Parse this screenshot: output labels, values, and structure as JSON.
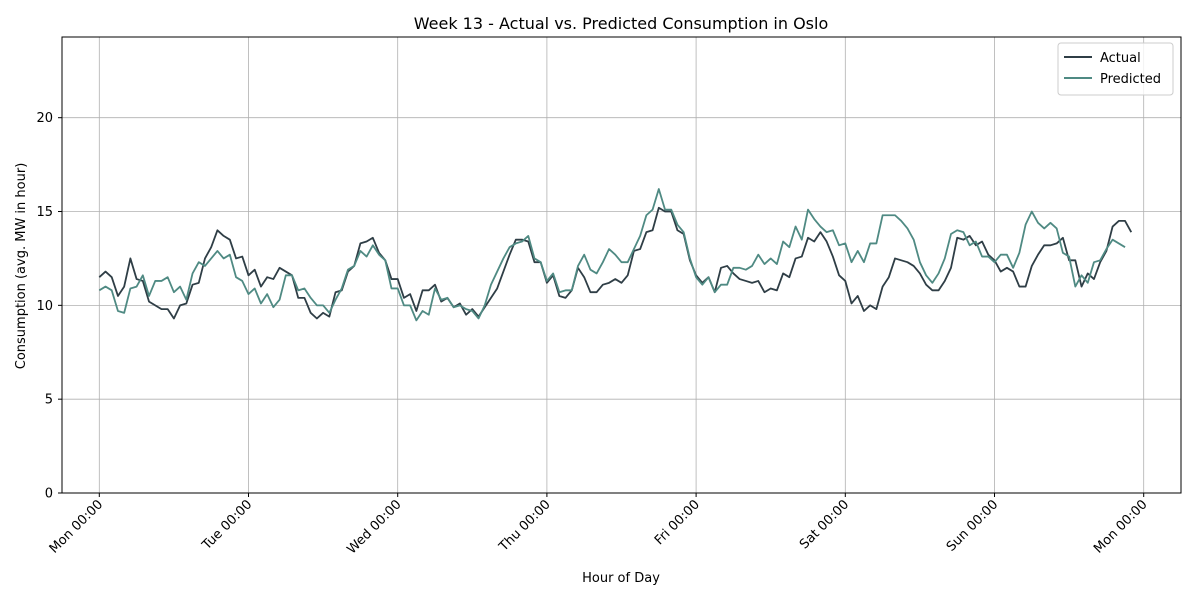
{
  "chart_data": {
    "type": "line",
    "title": "Week 13 - Actual vs. Predicted Consumption in Oslo",
    "xlabel": "Hour of Day",
    "ylabel": "Consumption (avg. MW in hour)",
    "xlim": [
      -6,
      174
    ],
    "ylim": [
      0,
      24.3
    ],
    "x_ticks": [
      {
        "x": 0,
        "label": "Mon 00:00"
      },
      {
        "x": 24,
        "label": "Tue 00:00"
      },
      {
        "x": 48,
        "label": "Wed 00:00"
      },
      {
        "x": 72,
        "label": "Thu 00:00"
      },
      {
        "x": 96,
        "label": "Fri 00:00"
      },
      {
        "x": 120,
        "label": "Sat 00:00"
      },
      {
        "x": 144,
        "label": "Sun 00:00"
      },
      {
        "x": 168,
        "label": "Mon 00:00"
      }
    ],
    "y_ticks": [
      0,
      5,
      10,
      15,
      20
    ],
    "grid": true,
    "legend_position": "top-right",
    "x_step_hours": 1,
    "series": [
      {
        "name": "Actual",
        "color": "#2f3e46",
        "values": [
          11.5,
          11.8,
          11.5,
          10.5,
          11.0,
          12.5,
          11.4,
          11.3,
          10.2,
          10.0,
          9.8,
          9.8,
          9.3,
          10.0,
          10.1,
          11.1,
          11.2,
          12.5,
          13.1,
          14.0,
          13.7,
          13.5,
          12.5,
          12.6,
          11.6,
          11.9,
          11.0,
          11.5,
          11.4,
          12.0,
          11.8,
          11.6,
          10.4,
          10.4,
          9.6,
          9.3,
          9.6,
          9.4,
          10.7,
          10.8,
          11.8,
          12.1,
          13.3,
          13.4,
          13.6,
          12.8,
          12.4,
          11.4,
          11.4,
          10.4,
          10.6,
          9.7,
          10.8,
          10.8,
          11.1,
          10.2,
          10.4,
          9.9,
          10.1,
          9.5,
          9.8,
          9.4,
          9.9,
          10.4,
          10.9,
          11.8,
          12.7,
          13.5,
          13.5,
          13.4,
          12.3,
          12.3,
          11.2,
          11.6,
          10.5,
          10.4,
          10.8,
          12.0,
          11.5,
          10.7,
          10.7,
          11.1,
          11.2,
          11.4,
          11.2,
          11.6,
          12.9,
          13.0,
          13.9,
          14.0,
          15.2,
          15.0,
          15.0,
          14.0,
          13.8,
          12.4,
          11.6,
          11.2,
          11.5,
          10.7,
          12.0,
          12.1,
          11.7,
          11.4,
          11.3,
          11.2,
          11.3,
          10.7,
          10.9,
          10.8,
          11.7,
          11.5,
          12.5,
          12.6,
          13.6,
          13.4,
          13.9,
          13.4,
          12.6,
          11.6,
          11.3,
          10.1,
          10.5,
          9.7,
          10.0,
          9.8,
          11.0,
          11.5,
          12.5,
          12.4,
          12.3,
          12.1,
          11.7,
          11.1,
          10.8,
          10.8,
          11.3,
          12.0,
          13.6,
          13.5,
          13.7,
          13.2,
          13.4,
          12.7,
          12.4,
          11.8,
          12.0,
          11.8,
          11.0,
          11.0,
          12.1,
          12.7,
          13.2,
          13.2,
          13.3,
          13.6,
          12.4,
          12.4,
          11.0,
          11.7,
          11.4,
          12.3,
          12.9,
          14.2,
          14.5,
          14.5,
          13.9
        ]
      },
      {
        "name": "Predicted",
        "color": "#4f8a83",
        "values": [
          10.8,
          11.0,
          10.8,
          9.7,
          9.6,
          10.9,
          11.0,
          11.6,
          10.5,
          11.3,
          11.3,
          11.5,
          10.7,
          11.0,
          10.3,
          11.7,
          12.3,
          12.1,
          12.5,
          12.9,
          12.5,
          12.7,
          11.5,
          11.3,
          10.6,
          10.9,
          10.1,
          10.6,
          9.9,
          10.3,
          11.6,
          11.6,
          10.8,
          10.9,
          10.4,
          10.0,
          10.0,
          9.6,
          10.3,
          10.9,
          11.9,
          12.1,
          12.9,
          12.6,
          13.2,
          12.7,
          12.4,
          10.9,
          10.9,
          10.0,
          10.0,
          9.2,
          9.7,
          9.5,
          10.9,
          10.3,
          10.4,
          9.9,
          10.0,
          9.8,
          9.7,
          9.3,
          10.0,
          11.1,
          11.8,
          12.5,
          13.1,
          13.3,
          13.4,
          13.7,
          12.5,
          12.3,
          11.3,
          11.7,
          10.7,
          10.8,
          10.8,
          12.1,
          12.7,
          11.9,
          11.7,
          12.3,
          13.0,
          12.7,
          12.3,
          12.3,
          13.0,
          13.7,
          14.8,
          15.1,
          16.2,
          15.1,
          15.1,
          14.3,
          13.9,
          12.5,
          11.5,
          11.1,
          11.5,
          10.7,
          11.1,
          11.1,
          12.0,
          12.0,
          11.9,
          12.1,
          12.7,
          12.2,
          12.5,
          12.2,
          13.4,
          13.1,
          14.2,
          13.5,
          15.1,
          14.6,
          14.2,
          13.9,
          14.0,
          13.2,
          13.3,
          12.3,
          12.9,
          12.3,
          13.3,
          13.3,
          14.8,
          14.8,
          14.8,
          14.5,
          14.1,
          13.5,
          12.3,
          11.6,
          11.2,
          11.7,
          12.5,
          13.8,
          14.0,
          13.9,
          13.2,
          13.4,
          12.6,
          12.6,
          12.3,
          12.7,
          12.7,
          12.0,
          12.8,
          14.3,
          15.0,
          14.4,
          14.1,
          14.4,
          14.1,
          12.8,
          12.6,
          11.0,
          11.6,
          11.2,
          12.3,
          12.4,
          13.0,
          13.5,
          13.3,
          13.1
        ]
      }
    ]
  }
}
